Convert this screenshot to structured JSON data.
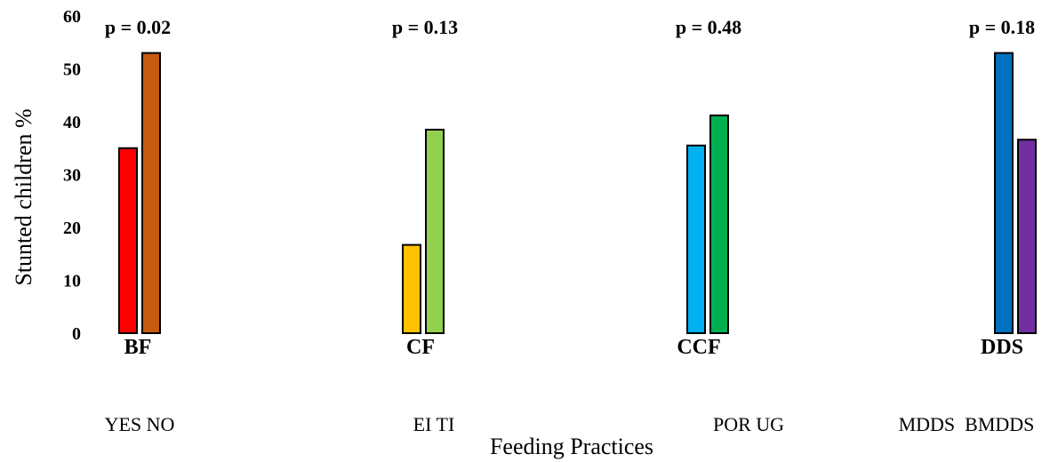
{
  "chart_data": {
    "type": "bar",
    "xlabel": "Feeding Practices",
    "ylabel": "Stunted children %",
    "ylim": [
      0,
      60
    ],
    "yticks": [
      "0",
      "10",
      "20",
      "30",
      "40",
      "50",
      "60"
    ],
    "grid": false,
    "groups": [
      {
        "name": "BF",
        "p_value": "p = 0.02",
        "sublabel": "YES NO",
        "bars": [
          {
            "label": "YES",
            "value": 35,
            "color": "#ff0000"
          },
          {
            "label": "NO",
            "value": 53,
            "color": "#c55a11"
          }
        ]
      },
      {
        "name": "CF",
        "p_value": "p = 0.13",
        "sublabel": "EI TI",
        "bars": [
          {
            "label": "EI",
            "value": 16.7,
            "color": "#ffc000"
          },
          {
            "label": "TI",
            "value": 38.5,
            "color": "#92d050"
          }
        ]
      },
      {
        "name": "CCF",
        "p_value": "p = 0.48",
        "sublabel": "POR UG",
        "bars": [
          {
            "label": "POR",
            "value": 35.5,
            "color": "#00b0f0"
          },
          {
            "label": "UG",
            "value": 41.2,
            "color": "#00b050"
          }
        ]
      },
      {
        "name": "DDS",
        "p_value": "p = 0.18",
        "sublabel": "MDDS  BMDDS",
        "bars": [
          {
            "label": "MDDS",
            "value": 53,
            "color": "#0070c0"
          },
          {
            "label": "BMDDS",
            "value": 36.6,
            "color": "#7030a0"
          }
        ]
      }
    ]
  }
}
